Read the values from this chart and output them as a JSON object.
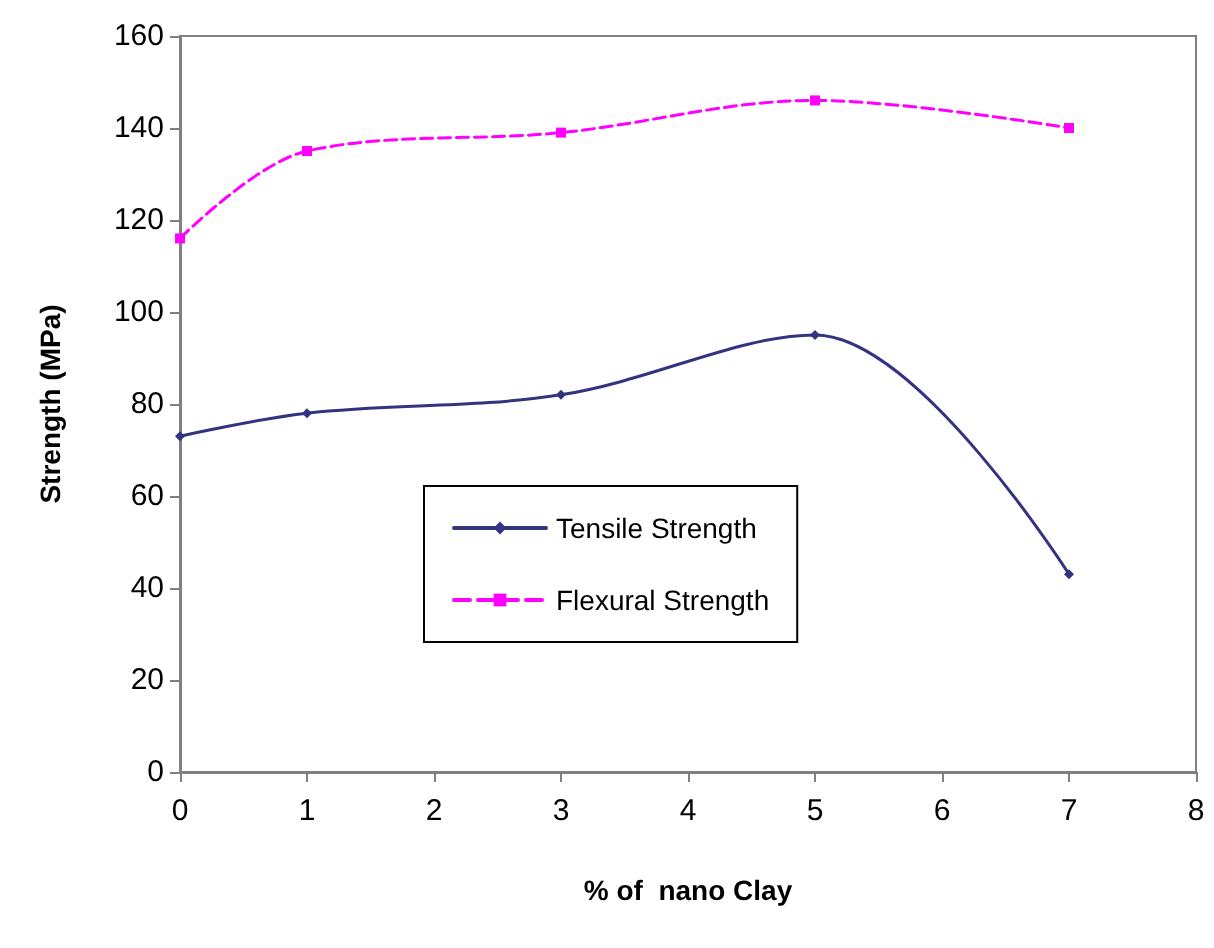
{
  "chart_data": {
    "type": "line",
    "xlabel": "% of  nano Clay",
    "ylabel": "Strength (MPa)",
    "x": [
      0,
      1,
      3,
      5,
      7
    ],
    "series": [
      {
        "name": "Tensile Strength",
        "color": "#333380",
        "values": [
          73,
          78,
          82,
          95,
          43
        ],
        "marker": "diamond",
        "line_style": "solid"
      },
      {
        "name": "Flexural Strength",
        "color": "#ff00ff",
        "values": [
          116,
          135,
          139,
          146,
          140
        ],
        "marker": "square",
        "line_style": "dashed"
      }
    ],
    "xlim": [
      0,
      8
    ],
    "xticks": [
      0,
      1,
      2,
      3,
      4,
      5,
      6,
      7,
      8
    ],
    "ylim": [
      0,
      160
    ],
    "yticks": [
      0,
      20,
      40,
      60,
      80,
      100,
      120,
      140,
      160
    ],
    "grid": false,
    "legend": "left"
  }
}
